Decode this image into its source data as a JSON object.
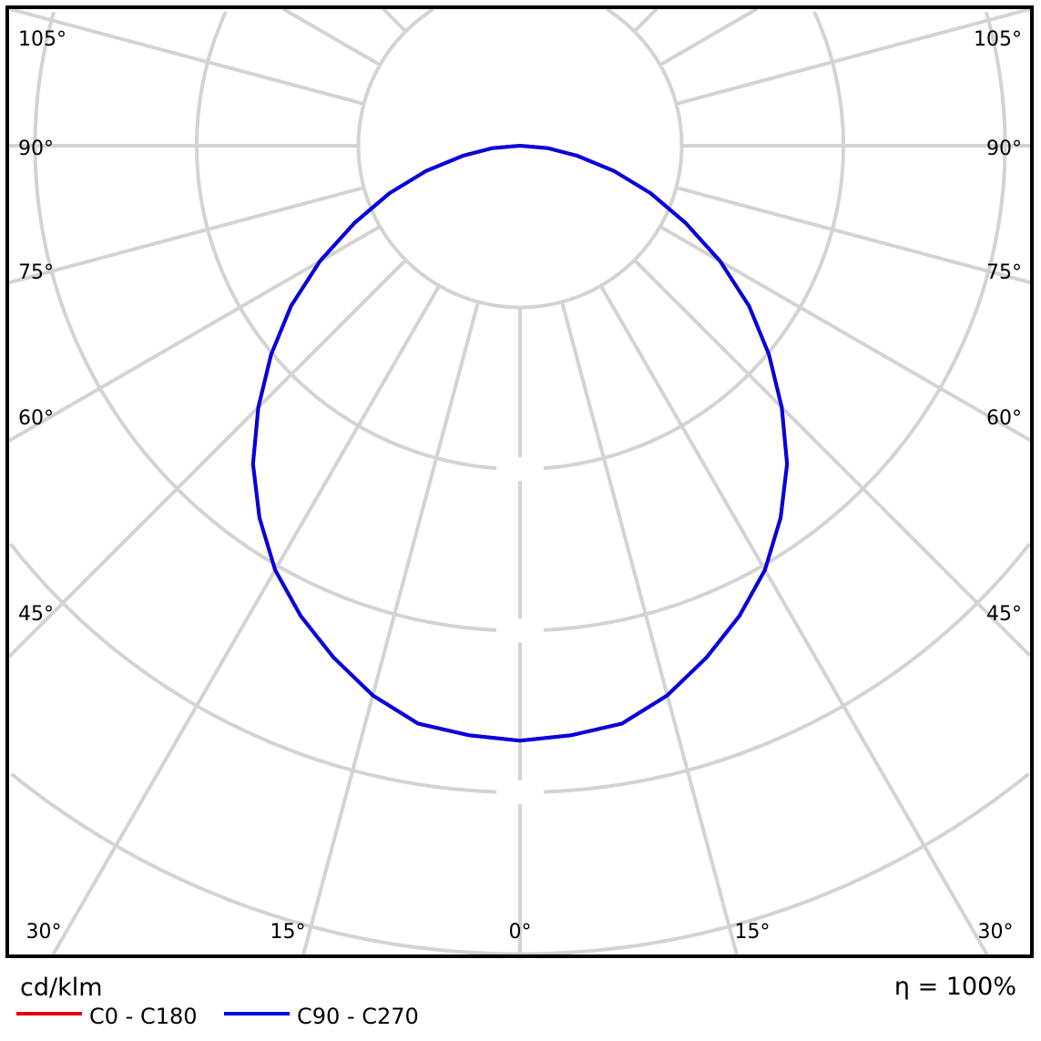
{
  "chart_data": {
    "type": "polar-line",
    "unit_label": "cd/klm",
    "efficiency_label": "η = 100%",
    "grid": true,
    "radial_rings": [
      1,
      2,
      3,
      4,
      5,
      6,
      7
    ],
    "spoke_step_deg": 15,
    "angle_labels_left": [
      "105°",
      "90°",
      "75°",
      "60°",
      "45°"
    ],
    "angle_labels_right": [
      "105°",
      "90°",
      "75°",
      "60°",
      "45°"
    ],
    "angle_labels_bottom": [
      "30°",
      "15°",
      "0°",
      "15°",
      "30°"
    ],
    "angles_deg": [
      0,
      5,
      10,
      15,
      20,
      25,
      30,
      35,
      40,
      45,
      50,
      55,
      60,
      65,
      70,
      75,
      80,
      85,
      90
    ],
    "series": [
      {
        "name": "C0 - C180",
        "color": "#e00000",
        "values": [
          3.68,
          3.66,
          3.63,
          3.52,
          3.37,
          3.21,
          3.03,
          2.81,
          2.57,
          2.29,
          2.01,
          1.73,
          1.43,
          1.13,
          0.86,
          0.6,
          0.36,
          0.17,
          0
        ]
      },
      {
        "name": "C90 - C270",
        "color": "#0000e0",
        "values": [
          3.68,
          3.66,
          3.63,
          3.52,
          3.37,
          3.21,
          3.03,
          2.81,
          2.57,
          2.29,
          2.01,
          1.73,
          1.43,
          1.13,
          0.86,
          0.6,
          0.36,
          0.17,
          0
        ]
      }
    ]
  }
}
